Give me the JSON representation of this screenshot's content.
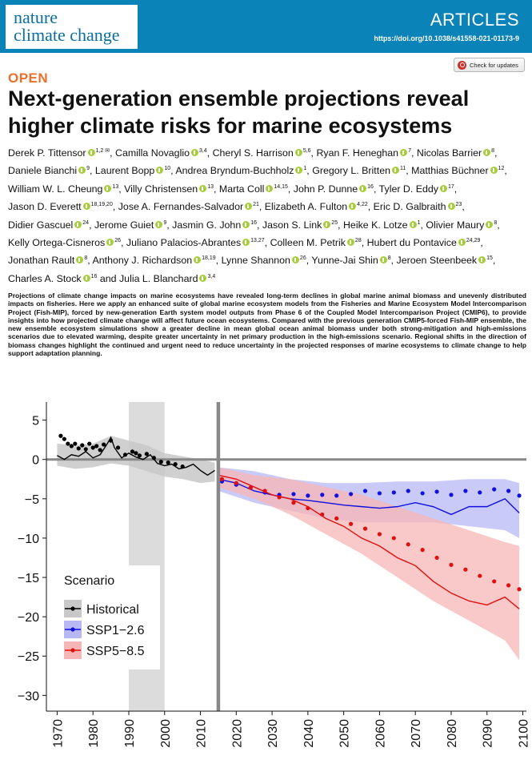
{
  "header": {
    "journal_line1": "nature",
    "journal_line2": "climate change",
    "section": "ARTICLES",
    "doi": "https://doi.org/10.1038/s41558-021-01173-9"
  },
  "check_updates_label": "Check for updates",
  "open_label": "OPEN",
  "article_title": "Next-generation ensemble projections reveal higher climate risks for marine ecosystems",
  "authors": [
    {
      "name": "Derek P. Tittensor",
      "aff": "1,2 ✉"
    },
    {
      "name": "Camilla Novaglio",
      "aff": "3,4"
    },
    {
      "name": "Cheryl S. Harrison",
      "aff": "5,6"
    },
    {
      "name": "Ryan F. Heneghan",
      "aff": "7"
    },
    {
      "name": "Nicolas Barrier",
      "aff": "8"
    },
    {
      "name": "Daniele Bianchi",
      "aff": "9"
    },
    {
      "name": "Laurent Bopp",
      "aff": "10"
    },
    {
      "name": "Andrea Bryndum-Buchholz",
      "aff": "1"
    },
    {
      "name": "Gregory L. Britten",
      "aff": "11"
    },
    {
      "name": "Matthias Büchner",
      "aff": "12"
    },
    {
      "name": "William W. L. Cheung",
      "aff": "13"
    },
    {
      "name": "Villy Christensen",
      "aff": "13"
    },
    {
      "name": "Marta Coll",
      "aff": "14,15"
    },
    {
      "name": "John P. Dunne",
      "aff": "16"
    },
    {
      "name": "Tyler D. Eddy",
      "aff": "17"
    },
    {
      "name": "Jason D. Everett",
      "aff": "18,19,20"
    },
    {
      "name": "Jose A. Fernandes-Salvador",
      "aff": "21"
    },
    {
      "name": "Elizabeth A. Fulton",
      "aff": "4,22"
    },
    {
      "name": "Eric D. Galbraith",
      "aff": "23"
    },
    {
      "name": "Didier Gascuel",
      "aff": "24"
    },
    {
      "name": "Jerome Guiet",
      "aff": "9"
    },
    {
      "name": "Jasmin G. John",
      "aff": "16"
    },
    {
      "name": "Jason S. Link",
      "aff": "25"
    },
    {
      "name": "Heike K. Lotze",
      "aff": "1"
    },
    {
      "name": "Olivier Maury",
      "aff": "8"
    },
    {
      "name": "Kelly Ortega-Cisneros",
      "aff": "26"
    },
    {
      "name": "Juliano Palacios-Abrantes",
      "aff": "13,27"
    },
    {
      "name": "Colleen M. Petrik",
      "aff": "28"
    },
    {
      "name": "Hubert du Pontavice",
      "aff": "24,29"
    },
    {
      "name": "Jonathan Rault",
      "aff": "8"
    },
    {
      "name": "Anthony J. Richardson",
      "aff": "18,19"
    },
    {
      "name": "Lynne Shannon",
      "aff": "26"
    },
    {
      "name": "Yunne-Jai Shin",
      "aff": "8"
    },
    {
      "name": "Jeroen Steenbeek",
      "aff": "15"
    },
    {
      "name": "Charles A. Stock",
      "aff": "16"
    },
    {
      "name": "Julia L. Blanchard",
      "aff": "3,4"
    }
  ],
  "author_connector": "and",
  "abstract": "Projections of climate change impacts on marine ecosystems have revealed long-term declines in global marine animal biomass and unevenly distributed impacts on fisheries. Here we apply an enhanced suite of global marine ecosystem models from the Fisheries and Marine Ecosystem Model Intercomparison Project (Fish-MIP), forced by new-generation Earth system model outputs from Phase 6 of the Coupled Model Intercomparison Project (CMIP6), to provide insights into how projected climate change will affect future ocean ecosystems. Compared with the previous generation CMIP5-forced Fish-MIP ensemble, the new ensemble ecosystem simulations show a greater decline in mean global ocean animal biomass under both strong-mitigation and high-emissions scenarios due to elevated warming, despite greater uncertainty in net primary production in the high-emissions scenario. Regional shifts in the direction of biomass changes highlight the continued and urgent need to reduce uncertainty in the projected responses of marine ecosystems to climate change to help support adaptation planning.",
  "colors": {
    "header_bg": "#0a83b8",
    "open_orange": "#e8702a",
    "orcid_green": "#a6ce39",
    "historical": "#000000",
    "ssp126": "#1010e0",
    "ssp585": "#e01010",
    "ssp126_band": "#b8b8f5",
    "ssp585_band": "#f7b5b5",
    "historical_band": "#c8c8c8"
  },
  "chart_data": {
    "type": "line",
    "title": "",
    "xlabel": "",
    "ylabel": "",
    "xlim": [
      1967,
      2101
    ],
    "ylim": [
      -32,
      7.3
    ],
    "x_ticks": [
      1970,
      1980,
      1990,
      2000,
      2010,
      2020,
      2030,
      2040,
      2050,
      2060,
      2070,
      2080,
      2090,
      2100
    ],
    "y_ticks": [
      5,
      0,
      -5,
      -10,
      -15,
      -20,
      -25,
      -30
    ],
    "y_tick_labels": [
      "5",
      "0",
      "−5",
      "−10",
      "−15",
      "−20",
      "−25",
      "−30"
    ],
    "reference_lines": {
      "y": 0,
      "x": 2015
    },
    "shaded_period": [
      1990,
      2000
    ],
    "legend": {
      "title": "Scenario",
      "position": "bottom-left",
      "entries": [
        "Historical",
        "SSP1−2.6",
        "SSP5−8.5"
      ]
    },
    "series": [
      {
        "name": "Historical",
        "color": "#000000",
        "line": {
          "x": [
            1970,
            1972,
            1974,
            1976,
            1978,
            1980,
            1982,
            1984,
            1985,
            1986,
            1988,
            1990,
            1992,
            1994,
            1996,
            1998,
            2000,
            2002,
            2004,
            2006,
            2008,
            2010,
            2012,
            2014
          ],
          "y": [
            0.5,
            0.0,
            0.6,
            0.4,
            1.0,
            0.2,
            0.6,
            2.0,
            2.8,
            1.5,
            0.2,
            0.8,
            0.3,
            0.0,
            0.6,
            -0.5,
            -0.8,
            -0.6,
            -1.2,
            -1.0,
            -0.6,
            -1.4,
            -2.0,
            -1.4
          ]
        },
        "points": {
          "x": [
            1971,
            1972,
            1973,
            1974,
            1975,
            1976,
            1977,
            1978,
            1979,
            1980,
            1981,
            1982,
            1983,
            1985,
            1987,
            1989,
            1991,
            1992,
            1993,
            1995,
            1997,
            1999,
            2001,
            2003,
            2005
          ],
          "y": [
            3.0,
            2.6,
            2.0,
            1.7,
            2.0,
            1.4,
            1.8,
            1.3,
            2.0,
            1.5,
            1.7,
            1.2,
            1.9,
            2.4,
            1.5,
            0.6,
            1.0,
            0.8,
            0.5,
            0.7,
            0.2,
            -0.3,
            -0.4,
            -0.6,
            -0.9
          ]
        },
        "band": {
          "x": [
            1970,
            1975,
            1980,
            1985,
            1990,
            1995,
            2000,
            2005,
            2010,
            2014
          ],
          "lower": [
            -0.8,
            -1.2,
            -1.0,
            -0.5,
            -0.8,
            -1.5,
            -2.2,
            -2.5,
            -3.0,
            -2.8
          ],
          "upper": [
            2.0,
            1.8,
            2.0,
            3.0,
            2.4,
            1.8,
            0.8,
            0.4,
            0.0,
            -0.4
          ]
        }
      },
      {
        "name": "SSP1−2.6",
        "color": "#1010e0",
        "line": {
          "x": [
            2015,
            2020,
            2025,
            2030,
            2035,
            2040,
            2045,
            2050,
            2055,
            2060,
            2065,
            2070,
            2075,
            2080,
            2085,
            2090,
            2095,
            2099
          ],
          "y": [
            -2.5,
            -3.0,
            -4.0,
            -4.5,
            -5.0,
            -5.2,
            -5.5,
            -5.8,
            -6.0,
            -6.2,
            -6.0,
            -5.5,
            -6.0,
            -7.0,
            -6.0,
            -6.0,
            -5.0,
            -6.8
          ]
        },
        "points": {
          "x": [
            2016,
            2020,
            2024,
            2028,
            2032,
            2036,
            2040,
            2044,
            2048,
            2052,
            2056,
            2060,
            2064,
            2068,
            2072,
            2076,
            2080,
            2084,
            2088,
            2092,
            2096,
            2099
          ],
          "y": [
            -2.8,
            -3.2,
            -3.6,
            -4.2,
            -4.5,
            -4.4,
            -4.6,
            -4.5,
            -4.6,
            -4.4,
            -4.0,
            -4.3,
            -4.2,
            -4.0,
            -4.3,
            -4.1,
            -4.5,
            -4.0,
            -4.2,
            -3.8,
            -4.0,
            -4.6
          ]
        },
        "band": {
          "x": [
            2015,
            2025,
            2035,
            2045,
            2055,
            2065,
            2075,
            2085,
            2095,
            2099
          ],
          "lower": [
            -4.0,
            -5.5,
            -6.5,
            -7.5,
            -8.0,
            -8.0,
            -8.0,
            -8.5,
            -9.0,
            -10.0
          ],
          "upper": [
            -1.0,
            -1.5,
            -2.5,
            -3.0,
            -3.0,
            -2.8,
            -2.8,
            -2.5,
            -2.5,
            -3.0
          ]
        }
      },
      {
        "name": "SSP5−8.5",
        "color": "#e01010",
        "line": {
          "x": [
            2015,
            2020,
            2025,
            2030,
            2035,
            2040,
            2045,
            2050,
            2055,
            2060,
            2065,
            2070,
            2075,
            2080,
            2085,
            2090,
            2095,
            2099
          ],
          "y": [
            -2.0,
            -2.5,
            -3.5,
            -4.5,
            -5.0,
            -6.0,
            -7.5,
            -8.5,
            -10.0,
            -11.0,
            -12.5,
            -13.5,
            -15.5,
            -17.0,
            -18.0,
            -18.5,
            -17.5,
            -19.0
          ]
        },
        "points": {
          "x": [
            2016,
            2020,
            2024,
            2028,
            2032,
            2036,
            2040,
            2044,
            2048,
            2052,
            2056,
            2060,
            2064,
            2068,
            2072,
            2076,
            2080,
            2084,
            2088,
            2092,
            2096,
            2099
          ],
          "y": [
            -2.5,
            -3.0,
            -3.6,
            -4.0,
            -4.8,
            -5.5,
            -6.2,
            -7.0,
            -7.5,
            -8.2,
            -8.8,
            -9.5,
            -10.0,
            -10.8,
            -11.5,
            -12.5,
            -13.4,
            -14.0,
            -14.8,
            -15.5,
            -16.0,
            -16.5
          ]
        },
        "band": {
          "x": [
            2015,
            2025,
            2035,
            2045,
            2055,
            2065,
            2075,
            2085,
            2095,
            2099
          ],
          "lower": [
            -3.5,
            -5.0,
            -7.0,
            -9.5,
            -12.0,
            -15.0,
            -18.0,
            -20.5,
            -23.0,
            -25.5
          ],
          "upper": [
            -1.0,
            -2.0,
            -2.5,
            -3.5,
            -4.5,
            -6.0,
            -7.5,
            -9.0,
            -10.5,
            -11.0
          ]
        }
      }
    ]
  }
}
